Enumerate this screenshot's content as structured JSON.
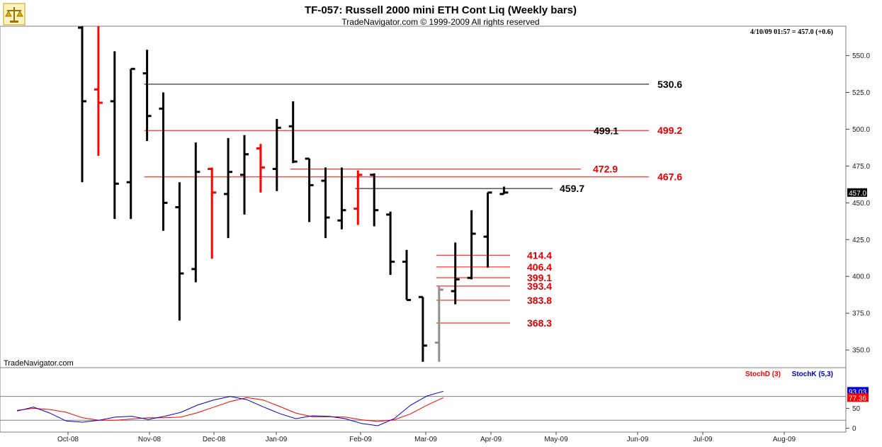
{
  "header": {
    "title": "TF-057:  Russell 2000 mini ETH Cont Liq  (Weekly bars)",
    "copyright": "TradeNavigator.com © 1999-2009 All rights reserved",
    "last_quote": "4/10/09 01:57 = 457.0 (+0.6)",
    "watermark": "TradeNavigator.com",
    "logo_icon": "scales-logo-icon"
  },
  "colors": {
    "up_bar": "#000000",
    "down_bar": "#ff0000",
    "pending_bar": "#909090",
    "stochD": "#ff0000",
    "stochK": "#0000cc",
    "frame": "#7f7f7f",
    "price_tag_bg": "#000000",
    "stochK_tag_bg": "#0000cc",
    "stochD_tag_bg": "#ff0000"
  },
  "chart_data": [
    {
      "type": "ohlc",
      "title": "TF-057:  Russell 2000 mini ETH Cont Liq  (Weekly bars)",
      "ylim": [
        338,
        570
      ],
      "y_ticks": [
        350.0,
        375.0,
        400.0,
        425.0,
        450.0,
        475.0,
        500.0,
        525.0,
        550.0
      ],
      "x_ticks": [
        "Oct-08",
        "Nov-08",
        "Dec-08",
        "Jan-09",
        "Feb-09",
        "Mar-09",
        "Apr-09",
        "May-09",
        "Jun-09",
        "Jul-09",
        "Aug-09"
      ],
      "last_price": "457.0",
      "bars": [
        {
          "o": 569,
          "h": 570,
          "l": 464,
          "c": 519,
          "color": "black"
        },
        {
          "o": 527,
          "h": 570,
          "l": 482,
          "c": 518,
          "color": "red"
        },
        {
          "o": 519,
          "h": 553,
          "l": 439,
          "c": 463,
          "color": "black"
        },
        {
          "o": 464,
          "h": 541,
          "l": 439,
          "c": 541,
          "color": "black"
        },
        {
          "o": 538,
          "h": 554,
          "l": 492,
          "c": 509,
          "color": "black"
        },
        {
          "o": 514,
          "h": 525,
          "l": 431,
          "c": 450,
          "color": "black"
        },
        {
          "o": 447,
          "h": 464,
          "l": 370,
          "c": 402,
          "color": "black"
        },
        {
          "o": 405,
          "h": 491,
          "l": 396,
          "c": 471,
          "color": "black"
        },
        {
          "o": 473,
          "h": 474,
          "l": 412,
          "c": 457,
          "color": "red"
        },
        {
          "o": 456,
          "h": 494,
          "l": 426,
          "c": 471,
          "color": "black"
        },
        {
          "o": 469,
          "h": 496,
          "l": 442,
          "c": 483,
          "color": "black"
        },
        {
          "o": 487,
          "h": 490,
          "l": 457,
          "c": 474,
          "color": "red"
        },
        {
          "o": 473,
          "h": 507,
          "l": 458,
          "c": 501,
          "color": "black"
        },
        {
          "o": 502,
          "h": 519,
          "l": 477,
          "c": 478,
          "color": "black"
        },
        {
          "o": 480,
          "h": 480,
          "l": 437,
          "c": 462,
          "color": "black"
        },
        {
          "o": 465,
          "h": 474,
          "l": 426,
          "c": 440,
          "color": "black"
        },
        {
          "o": 438,
          "h": 474,
          "l": 432,
          "c": 445,
          "color": "black"
        },
        {
          "o": 446,
          "h": 472,
          "l": 435,
          "c": 469,
          "color": "red"
        },
        {
          "o": 469,
          "h": 470,
          "l": 434,
          "c": 445,
          "color": "black"
        },
        {
          "o": 442,
          "h": 444,
          "l": 401,
          "c": 410,
          "color": "black"
        },
        {
          "o": 410,
          "h": 418,
          "l": 384,
          "c": 384,
          "color": "black"
        },
        {
          "o": 386,
          "h": 386,
          "l": 342,
          "c": 353,
          "color": "black"
        },
        {
          "o": 355,
          "h": 393,
          "l": 342,
          "c": 391,
          "color": "gray"
        },
        {
          "o": 390,
          "h": 423,
          "l": 381,
          "c": 398,
          "color": "black"
        },
        {
          "o": 399,
          "h": 445,
          "l": 398,
          "c": 429,
          "color": "black"
        },
        {
          "o": 427,
          "h": 457,
          "l": 406,
          "c": 457,
          "color": "black"
        },
        {
          "o": 456,
          "h": 461,
          "l": 456,
          "c": 457,
          "color": "black"
        }
      ],
      "levels": [
        {
          "label": "530.6",
          "value": 530.6,
          "color": "black",
          "from_bar": 4,
          "to_x": "Jun-09"
        },
        {
          "label": "499.1",
          "value": 499.1,
          "color": "red",
          "from_bar": 4,
          "to_x": "Jun-09",
          "label_color": "black",
          "label_at": "May-09"
        },
        {
          "label": "499.2",
          "value": 499.2,
          "color": "red",
          "from_bar": 4,
          "to_x": "Jun-09",
          "label_color": "red",
          "label_at": "Jun-09"
        },
        {
          "label": "472.9",
          "value": 472.9,
          "color": "red",
          "from_bar": 13,
          "to_x": "May-09"
        },
        {
          "label": "467.6",
          "value": 467.6,
          "color": "red",
          "from_bar": 4,
          "to_x": "Jun-09"
        },
        {
          "label": "459.7",
          "value": 459.7,
          "color": "black",
          "from_bar": 17,
          "to_x": "Apr-09+"
        },
        {
          "label": "414.4",
          "value": 414.4,
          "color": "red",
          "from_bar": 22,
          "to_x": "Apr-09"
        },
        {
          "label": "406.4",
          "value": 406.4,
          "color": "red",
          "from_bar": 22,
          "to_x": "Apr-09"
        },
        {
          "label": "399.1",
          "value": 399.1,
          "color": "red",
          "from_bar": 22,
          "to_x": "Apr-09"
        },
        {
          "label": "393.4",
          "value": 393.4,
          "color": "red",
          "from_bar": 22,
          "to_x": "Apr-09"
        },
        {
          "label": "383.8",
          "value": 383.8,
          "color": "red",
          "from_bar": 22,
          "to_x": "Apr-09"
        },
        {
          "label": "368.3",
          "value": 368.3,
          "color": "red",
          "from_bar": 22,
          "to_x": "Apr-09"
        }
      ]
    },
    {
      "type": "line",
      "title": "Stochastics",
      "ylim": [
        -10,
        115
      ],
      "y_ticks": [
        0,
        50
      ],
      "ref_lines": [
        20,
        80
      ],
      "legend": [
        "StochD (3)",
        "StochK (5,3)"
      ],
      "tags": [
        "93.03",
        "77.36"
      ],
      "series": [
        {
          "name": "StochD (3)",
          "color": "red",
          "values": [
            45,
            50,
            47,
            40,
            26,
            20,
            20,
            23,
            26,
            26,
            28,
            39,
            53,
            67,
            77,
            71,
            55,
            38,
            29,
            29,
            28,
            21,
            17,
            21,
            36,
            58,
            77
          ]
        },
        {
          "name": "StochK (5,3)",
          "color": "blue",
          "values": [
            43,
            53,
            38,
            18,
            15,
            20,
            28,
            30,
            22,
            30,
            40,
            58,
            71,
            80,
            72,
            54,
            37,
            24,
            31,
            30,
            24,
            12,
            6,
            24,
            58,
            81,
            93
          ]
        }
      ]
    }
  ]
}
